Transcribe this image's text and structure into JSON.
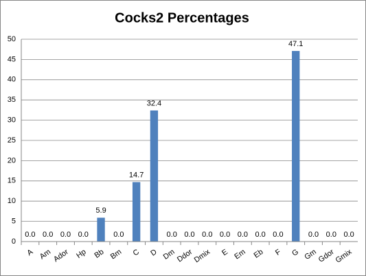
{
  "chart_data": {
    "type": "bar",
    "title": "Cocks2 Percentages",
    "categories": [
      "A",
      "Am",
      "Ador",
      "Hp",
      "Bb",
      "Bm",
      "C",
      "D",
      "Dm",
      "Ddor",
      "Dmix",
      "E",
      "Em",
      "Eb",
      "F",
      "G",
      "Gm",
      "Gdor",
      "Gmix"
    ],
    "values": [
      0,
      0,
      0,
      0,
      5.9,
      0,
      14.7,
      32.4,
      0,
      0,
      0,
      0,
      0,
      0,
      0,
      47.1,
      0,
      0,
      0
    ],
    "value_labels": [
      "0.0",
      "0.0",
      "0.0",
      "0.0",
      "5.9",
      "0.0",
      "14.7",
      "32.4",
      "0.0",
      "0.0",
      "0.0",
      "0.0",
      "0.0",
      "0.0",
      "0.0",
      "47.1",
      "0.0",
      "0.0",
      "0.0"
    ],
    "color": "#4f81bd",
    "ylim": [
      0,
      50
    ],
    "yticks": [
      0,
      5,
      10,
      15,
      20,
      25,
      30,
      35,
      40,
      45,
      50
    ],
    "grid": true
  }
}
